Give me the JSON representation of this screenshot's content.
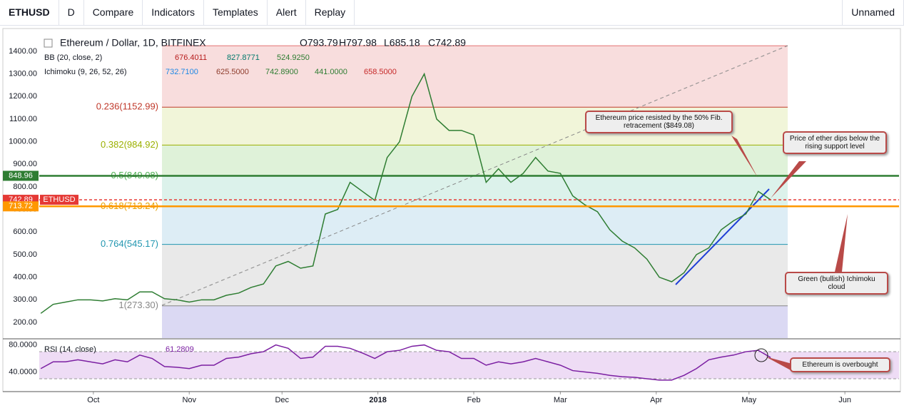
{
  "toolbar": {
    "symbol": "ETHUSD",
    "interval": "D",
    "buttons": [
      "Compare",
      "Indicators",
      "Templates",
      "Alert",
      "Replay"
    ],
    "layout_name": "Unnamed"
  },
  "chart_data": [
    {
      "type": "line",
      "title": "Ethereum / Dollar, 1D, BITFINEX",
      "ohlc": [
        "O793.79",
        "H797.98",
        "L685.18",
        "C742.89"
      ],
      "indicators": [
        {
          "name": "BB (20, close, 2)",
          "readings": [
            "676.4011",
            "827.8771",
            "524.9250"
          ],
          "colors": [
            "#b71c1c",
            "#00796b",
            "#2e7d32"
          ]
        },
        {
          "name": "Ichimoku (9, 26, 52, 26)",
          "readings": [
            "732.7100",
            "625.5000",
            "742.8900",
            "441.0000",
            "658.5000"
          ],
          "colors": [
            "#1e88e5",
            "#8d3b2b",
            "#2e7d32",
            "#2e7d32",
            "#c62828"
          ]
        }
      ],
      "x": [
        -17,
        -13,
        -9,
        -5,
        -1,
        3,
        7,
        11,
        15,
        19,
        23,
        27,
        31,
        35,
        39,
        43,
        47,
        51,
        55,
        59,
        63,
        67,
        71,
        75,
        79,
        83,
        87,
        91,
        95,
        99,
        103,
        107,
        111,
        115,
        119,
        123,
        127,
        131,
        135,
        139,
        143,
        147,
        151,
        155,
        159,
        163,
        167,
        171,
        175,
        179,
        183,
        187,
        191,
        195,
        199,
        203,
        207,
        211,
        215,
        219
      ],
      "series": [
        {
          "name": "ETHUSD",
          "color": "#2e7d32",
          "values": [
            240,
            280,
            290,
            300,
            300,
            295,
            305,
            300,
            335,
            335,
            305,
            300,
            290,
            300,
            300,
            320,
            330,
            355,
            370,
            450,
            470,
            440,
            450,
            680,
            700,
            820,
            780,
            740,
            930,
            1000,
            1200,
            1300,
            1100,
            1050,
            1050,
            1030,
            820,
            880,
            820,
            860,
            930,
            870,
            860,
            760,
            720,
            690,
            610,
            560,
            530,
            480,
            400,
            380,
            420,
            500,
            530,
            610,
            650,
            680,
            780,
            742.89
          ]
        }
      ],
      "xlim": [
        -17.5,
        260.5
      ],
      "xticks": [
        {
          "value": 0,
          "label": "Oct"
        },
        {
          "value": 31,
          "label": "Nov"
        },
        {
          "value": 61,
          "label": "Dec"
        },
        {
          "value": 92,
          "label": "2018"
        },
        {
          "value": 123,
          "label": "Feb"
        },
        {
          "value": 151,
          "label": "Mar"
        },
        {
          "value": 182,
          "label": "Apr"
        },
        {
          "value": 212,
          "label": "May"
        },
        {
          "value": 243,
          "label": "Jun"
        }
      ],
      "ylim": [
        130.5,
        1501
      ],
      "yticks": [
        {
          "value": 200,
          "label": "200.00"
        },
        {
          "value": 300,
          "label": "300.00"
        },
        {
          "value": 400,
          "label": "400.00"
        },
        {
          "value": 500,
          "label": "500.00"
        },
        {
          "value": 600,
          "label": "600.00"
        },
        {
          "value": 700,
          "label": "700.00"
        },
        {
          "value": 800,
          "label": "800.00"
        },
        {
          "value": 900,
          "label": "900.00"
        },
        {
          "value": 1000,
          "label": "1000.00"
        },
        {
          "value": 1100,
          "label": "1100.00"
        },
        {
          "value": 1200,
          "label": "1200.00"
        },
        {
          "value": 1300,
          "label": "1300.00"
        },
        {
          "value": 1400,
          "label": "1400.00"
        }
      ],
      "fib_levels": [
        {
          "value": 1424.86,
          "color": "#e57373",
          "fill": "#f6d4d4"
        },
        {
          "value": 1152.99,
          "label": "0.236(1152.99)",
          "color": "#c0392b",
          "fill": "#eef3d0"
        },
        {
          "value": 984.92,
          "label": "0.382(984.92)",
          "color": "#9bb000",
          "fill": "#d7efd0"
        },
        {
          "value": 849.08,
          "label": "0.5(849.08)",
          "color": "#4caf50",
          "fill": "#d3efe6"
        },
        {
          "value": 713.24,
          "label": "0.618(713.24)",
          "color": "#e6a000",
          "fill": "#d4e8f3"
        },
        {
          "value": 545.17,
          "label": "0.764(545.17)",
          "color": "#2196b0",
          "fill": "#e3e3e3"
        },
        {
          "value": 273.3,
          "label": "1(273.30)",
          "color": "#888888",
          "fill": "#d2d0f0"
        }
      ],
      "price_lines": [
        {
          "value": 848.96,
          "color": "#2e7d32"
        },
        {
          "value": 742.89,
          "color": "#e53935",
          "dashed": true
        },
        {
          "value": 713.72,
          "color": "#ff9800"
        }
      ],
      "annotations": [
        "Ethereum price resisted by the 50% Fib. retracement ($849.08)",
        "Price of ether dips below the rising support level",
        "Green (bullish) Ichimoku cloud",
        "Ethereum is overbought"
      ]
    },
    {
      "type": "line",
      "title": "RSI (14, close)",
      "x": [
        -17,
        -13,
        -9,
        -5,
        -1,
        3,
        7,
        11,
        15,
        19,
        23,
        27,
        31,
        35,
        39,
        43,
        47,
        51,
        55,
        59,
        63,
        67,
        71,
        75,
        79,
        83,
        87,
        91,
        95,
        99,
        103,
        107,
        111,
        115,
        119,
        123,
        127,
        131,
        135,
        139,
        143,
        147,
        151,
        155,
        159,
        163,
        167,
        171,
        175,
        179,
        183,
        187,
        191,
        195,
        199,
        203,
        207,
        211,
        215,
        219
      ],
      "series": [
        {
          "name": "RSI",
          "color": "#7b1fa2",
          "values": [
            45,
            55,
            55,
            58,
            55,
            52,
            58,
            55,
            65,
            60,
            48,
            47,
            45,
            50,
            50,
            60,
            62,
            67,
            70,
            80,
            75,
            60,
            62,
            78,
            78,
            75,
            68,
            60,
            70,
            72,
            78,
            80,
            72,
            70,
            60,
            60,
            50,
            55,
            52,
            55,
            60,
            55,
            50,
            42,
            40,
            38,
            35,
            33,
            32,
            30,
            28,
            28,
            35,
            45,
            58,
            62,
            65,
            70,
            72,
            61.2809
          ]
        }
      ],
      "ylim": [
        12,
        88
      ],
      "yticks": [
        {
          "value": 40,
          "label": "40.0000"
        },
        {
          "value": 80,
          "label": "80.0000"
        }
      ],
      "band": [
        30,
        70
      ]
    }
  ]
}
